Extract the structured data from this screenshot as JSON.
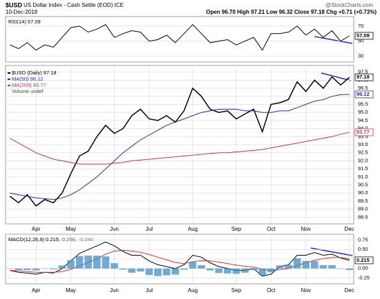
{
  "header": {
    "symbol": "$USD",
    "title": "US Dollar Index - Cash Settle (EOD) ICE",
    "date": "10-Dec-2018",
    "quote": "Open 96.70  High 97.21  Low 96.32  Close 97.18  Chg +0.71 (+0.73%)",
    "source": "@StockCharts.com"
  },
  "chart_data": [
    {
      "type": "line",
      "series": [
        {
          "name": "RSI(14) 57.09",
          "color": "#000000",
          "values": [
            45,
            40,
            48,
            38,
            45,
            42,
            55,
            68,
            70,
            62,
            66,
            72,
            55,
            60,
            64,
            62,
            50,
            52,
            58,
            48,
            60,
            72,
            60,
            48,
            50,
            52,
            45,
            50,
            55,
            38,
            60,
            60,
            62,
            70,
            58,
            66,
            55,
            64,
            50,
            57.09
          ]
        }
      ],
      "ylim": [
        25,
        80
      ],
      "yticks": [
        30,
        50,
        70
      ],
      "grid": true
    },
    {
      "type": "line",
      "categories": [
        null,
        null,
        null,
        "Apr",
        null,
        null,
        null,
        "May",
        null,
        null,
        null,
        null,
        "Jun",
        null,
        null,
        null,
        "Jul",
        null,
        null,
        null,
        null,
        "Aug",
        null,
        null,
        null,
        null,
        "Sep",
        null,
        null,
        null,
        "Oct",
        null,
        null,
        null,
        "Nov",
        null,
        null,
        null,
        null,
        "Dec"
      ],
      "series": [
        {
          "name": "$USD (Daily) 97.18",
          "color": "#000000",
          "values": [
            89.8,
            89.4,
            89.9,
            89.2,
            89.6,
            89.4,
            90.0,
            91.2,
            92.3,
            92.6,
            93.5,
            94.2,
            93.7,
            94.0,
            94.8,
            95.2,
            94.6,
            94.5,
            94.8,
            94.4,
            95.1,
            96.5,
            96.0,
            95.2,
            95.0,
            95.1,
            94.6,
            94.9,
            95.2,
            93.8,
            95.5,
            95.6,
            95.8,
            96.9,
            96.3,
            97.0,
            96.5,
            97.2,
            96.7,
            97.18
          ]
        },
        {
          "name": "MA(50) 96.12",
          "color": "#1f2f9f",
          "values": [
            90.0,
            89.9,
            89.8,
            89.7,
            89.65,
            89.6,
            89.7,
            89.9,
            90.2,
            90.6,
            91.0,
            91.5,
            92.0,
            92.5,
            92.9,
            93.3,
            93.6,
            93.9,
            94.2,
            94.4,
            94.6,
            94.8,
            95.0,
            95.1,
            95.2,
            95.2,
            95.2,
            95.1,
            95.1,
            95.0,
            95.0,
            95.1,
            95.1,
            95.3,
            95.5,
            95.7,
            95.8,
            96.0,
            96.1,
            96.12
          ]
        },
        {
          "name": "MA(200) 93.77",
          "color": "#c8324e",
          "values": [
            93.4,
            93.1,
            92.8,
            92.5,
            92.3,
            92.1,
            92.0,
            91.9,
            91.8,
            91.8,
            91.8,
            91.8,
            91.85,
            91.9,
            92.0,
            92.05,
            92.1,
            92.15,
            92.2,
            92.25,
            92.3,
            92.35,
            92.4,
            92.45,
            92.5,
            92.5,
            92.55,
            92.6,
            92.65,
            92.7,
            92.8,
            92.9,
            93.0,
            93.1,
            93.2,
            93.3,
            93.4,
            93.5,
            93.65,
            93.77
          ]
        }
      ],
      "legend_note": "Volume undef",
      "ylim": [
        88.3,
        97.7
      ],
      "yticks": [
        88.5,
        {
          "value": 89,
          "label": "89.0"
        },
        89.5,
        {
          "value": 90,
          "label": "90.0"
        },
        90.5,
        {
          "value": 91,
          "label": "91.0"
        },
        91.5,
        {
          "value": 92,
          "label": "92.0"
        },
        92.5,
        {
          "value": 93,
          "label": "93.0"
        },
        93.5,
        {
          "value": 94,
          "label": "94.0"
        },
        94.5,
        {
          "value": 95,
          "label": "95.0"
        },
        95.5,
        {
          "value": 96,
          "label": "96.0"
        },
        96.5,
        {
          "value": 97,
          "label": "97.0"
        },
        97.5
      ],
      "grid": true
    },
    {
      "type": "line",
      "categories": [
        null,
        null,
        null,
        "Apr",
        null,
        null,
        null,
        "May",
        null,
        null,
        null,
        null,
        "Jun",
        null,
        null,
        null,
        "Jul",
        null,
        null,
        null,
        null,
        "Aug",
        null,
        null,
        null,
        null,
        "Sep",
        null,
        null,
        null,
        "Oct",
        null,
        null,
        null,
        "Nov",
        null,
        null,
        null,
        null,
        "Dec"
      ],
      "series": [
        {
          "name": "MACD(12,26,9) 0.215,",
          "color": "#000000",
          "values": [
            -0.05,
            -0.1,
            -0.12,
            -0.15,
            -0.1,
            -0.12,
            0.0,
            0.2,
            0.4,
            0.5,
            0.6,
            0.7,
            0.6,
            0.45,
            0.35,
            0.35,
            0.2,
            0.1,
            0.05,
            0.0,
            0.1,
            0.35,
            0.3,
            0.15,
            0.05,
            0.0,
            -0.05,
            -0.05,
            0.0,
            -0.2,
            -0.15,
            0.05,
            0.1,
            0.35,
            0.35,
            0.42,
            0.35,
            0.38,
            0.28,
            0.215
          ]
        },
        {
          "name": "0.256,",
          "color": "#e03030",
          "values": [
            -0.05,
            -0.06,
            -0.08,
            -0.1,
            -0.1,
            -0.1,
            -0.08,
            -0.02,
            0.07,
            0.16,
            0.26,
            0.38,
            0.46,
            0.48,
            0.46,
            0.43,
            0.37,
            0.3,
            0.23,
            0.16,
            0.13,
            0.18,
            0.21,
            0.2,
            0.17,
            0.13,
            0.09,
            0.06,
            0.04,
            -0.02,
            -0.05,
            -0.03,
            0.0,
            0.08,
            0.15,
            0.22,
            0.26,
            0.29,
            0.29,
            0.256
          ]
        },
        {
          "name": "-0.040",
          "color": "#3f8fc8",
          "type": "bar",
          "values": [
            0,
            -0.04,
            -0.04,
            -0.05,
            0,
            -0.02,
            0.08,
            0.22,
            0.33,
            0.34,
            0.34,
            0.32,
            0.14,
            -0.03,
            -0.11,
            -0.08,
            -0.17,
            -0.2,
            -0.18,
            -0.16,
            -0.03,
            0.17,
            0.09,
            -0.05,
            -0.12,
            -0.13,
            -0.14,
            -0.11,
            -0.04,
            -0.18,
            -0.1,
            0.08,
            0.1,
            0.27,
            0.2,
            0.2,
            0.09,
            0.09,
            -0.01,
            -0.04
          ]
        }
      ],
      "ylim": [
        -0.35,
        0.85
      ],
      "yticks": [
        -0.25,
        {
          "value": 0,
          "label": "0.00"
        },
        0.25,
        {
          "value": 0.5,
          "label": "0.50"
        },
        0.75
      ],
      "grid": true
    }
  ]
}
